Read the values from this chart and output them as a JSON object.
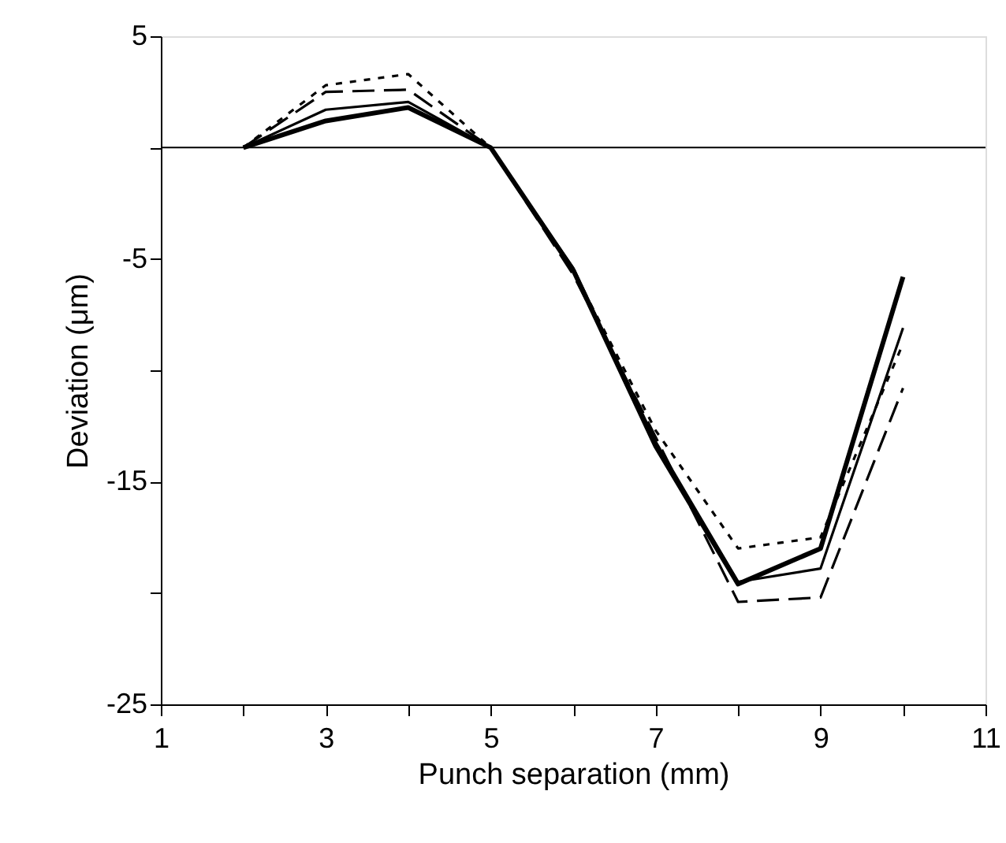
{
  "chart_data": {
    "type": "line",
    "xlabel": "Punch separation (mm)",
    "ylabel": "Deviation (μm)",
    "x": [
      2,
      3,
      4,
      5,
      6,
      7,
      8,
      9,
      10
    ],
    "series": [
      {
        "color": "#000000",
        "line_style": "solid",
        "values": [
          0,
          1.2,
          1.8,
          0,
          -5.5,
          -13.4,
          -19.6,
          -18.0,
          -5.8
        ]
      },
      {
        "color": "#000000",
        "line_style": "solid",
        "values": [
          0,
          1.7,
          2.05,
          0,
          -5.4,
          -13.2,
          -19.5,
          -18.9,
          -8.1
        ]
      },
      {
        "color": "#000000",
        "line_style": "dashed",
        "values": [
          0,
          2.5,
          2.6,
          0,
          -5.7,
          -13.0,
          -20.4,
          -20.2,
          -10.8
        ]
      },
      {
        "color": "#000000",
        "line_style": "dotted",
        "values": [
          0,
          2.8,
          3.3,
          0,
          -5.5,
          -12.7,
          -18.0,
          -17.5,
          -8.8
        ]
      }
    ],
    "xlim": [
      1,
      11
    ],
    "xticks": [
      1,
      {
        "value": 2,
        "label": null
      },
      3,
      {
        "value": 4,
        "label": null
      },
      5,
      {
        "value": 6,
        "label": null
      },
      7,
      {
        "value": 8,
        "label": null
      },
      9,
      {
        "value": 10,
        "label": null
      },
      11
    ],
    "ylim": [
      -25,
      5
    ],
    "yticks": [
      -25,
      {
        "value": -20,
        "label": null
      },
      -15,
      {
        "value": -10,
        "label": null
      },
      -5,
      {
        "value": 0,
        "label": null
      },
      5
    ],
    "ref_lines": [
      {
        "axis": "y",
        "value": 0,
        "color": "#000000"
      }
    ],
    "grid": false,
    "marker": "none"
  }
}
